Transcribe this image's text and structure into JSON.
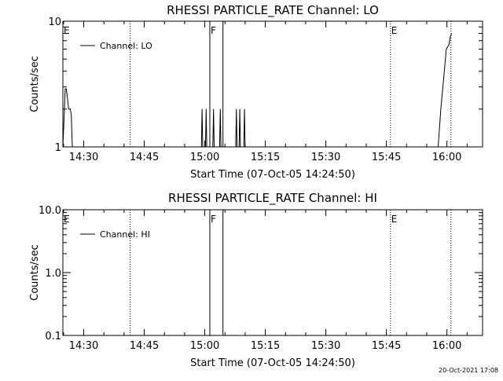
{
  "chart_data": [
    {
      "type": "line",
      "title": "RHESSI PARTICLE_RATE Channel: LO",
      "xlabel": "Start Time (07-Oct-05 14:24:50)",
      "ylabel": "Counts/sec",
      "yscale": "log",
      "ylim": [
        1,
        10
      ],
      "xlim": [
        "14:24:50",
        "16:08:50"
      ],
      "xticks": [
        "14:30",
        "14:45",
        "15:00",
        "15:15",
        "15:30",
        "15:45",
        "16:00"
      ],
      "yticks": [
        "1",
        "10"
      ],
      "legend": {
        "position": "top-left",
        "entries": [
          "Channel: LO"
        ]
      },
      "grid": false,
      "markers": [
        {
          "label": "E",
          "x": "14:24:50",
          "style": "solid"
        },
        {
          "label": "",
          "x": "14:41:30",
          "style": "dotted"
        },
        {
          "label": "F",
          "x": "15:01:15",
          "style": "solid"
        },
        {
          "label": "",
          "x": "15:04:30",
          "style": "solid"
        },
        {
          "label": "E",
          "x": "15:46:00",
          "style": "dotted"
        },
        {
          "label": "",
          "x": "16:01:00",
          "style": "dotted"
        }
      ],
      "series": [
        {
          "name": "Channel: LO",
          "points": [
            [
              "14:24:50",
              1
            ],
            [
              "14:25:10",
              1.8
            ],
            [
              "14:25:25",
              2.9
            ],
            [
              "14:25:40",
              2.9
            ],
            [
              "14:26:00",
              2.4
            ],
            [
              "14:26:15",
              2.0
            ],
            [
              "14:26:40",
              2.0
            ],
            [
              "14:26:55",
              1.8
            ],
            [
              "14:27:10",
              1
            ],
            [
              "15:12:00",
              1
            ],
            [
              "14:59:10",
              1
            ],
            [
              "14:59:20",
              2.0
            ],
            [
              "14:59:30",
              1
            ],
            [
              "15:00:10",
              1
            ],
            [
              "15:00:20",
              2.0
            ],
            [
              "15:00:30",
              1
            ],
            [
              "15:02:00",
              1
            ],
            [
              "15:02:10",
              2.0
            ],
            [
              "15:02:20",
              1
            ],
            [
              "15:03:40",
              1
            ],
            [
              "15:03:50",
              2.0
            ],
            [
              "15:04:00",
              1
            ],
            [
              "15:07:40",
              1
            ],
            [
              "15:07:50",
              2.0
            ],
            [
              "15:08:00",
              1
            ],
            [
              "15:08:30",
              1
            ],
            [
              "15:08:40",
              2.0
            ],
            [
              "15:08:50",
              1
            ],
            [
              "15:09:40",
              1
            ],
            [
              "15:09:50",
              2.0
            ],
            [
              "15:10:00",
              1
            ],
            [
              "15:57:50",
              1
            ],
            [
              "15:58:30",
              2.0
            ],
            [
              "15:59:00",
              3.0
            ],
            [
              "15:59:30",
              4.5
            ],
            [
              "15:59:50",
              6.0
            ],
            [
              "16:00:30",
              6.5
            ],
            [
              "16:00:50",
              7.5
            ],
            [
              "16:01:10",
              8.0
            ]
          ]
        }
      ]
    },
    {
      "type": "line",
      "title": "RHESSI PARTICLE_RATE Channel: HI",
      "xlabel": "Start Time (07-Oct-05 14:24:50)",
      "ylabel": "Counts/sec",
      "yscale": "log",
      "ylim": [
        0.1,
        10
      ],
      "xlim": [
        "14:24:50",
        "16:08:50"
      ],
      "xticks": [
        "14:30",
        "14:45",
        "15:00",
        "15:15",
        "15:30",
        "15:45",
        "16:00"
      ],
      "yticks": [
        "0.1",
        "1.0",
        "10.0"
      ],
      "legend": {
        "position": "top-left",
        "entries": [
          "Channel: HI"
        ]
      },
      "grid": false,
      "markers": [
        {
          "label": "E",
          "x": "14:24:50",
          "style": "solid"
        },
        {
          "label": "",
          "x": "14:41:30",
          "style": "dotted"
        },
        {
          "label": "F",
          "x": "15:01:15",
          "style": "solid"
        },
        {
          "label": "",
          "x": "15:04:30",
          "style": "solid"
        },
        {
          "label": "E",
          "x": "15:46:00",
          "style": "dotted"
        },
        {
          "label": "",
          "x": "16:01:00",
          "style": "dotted"
        }
      ],
      "series": [
        {
          "name": "Channel: HI",
          "points": []
        }
      ]
    }
  ],
  "footer": {
    "timestamp": "20-Oct-2021 17:08"
  }
}
